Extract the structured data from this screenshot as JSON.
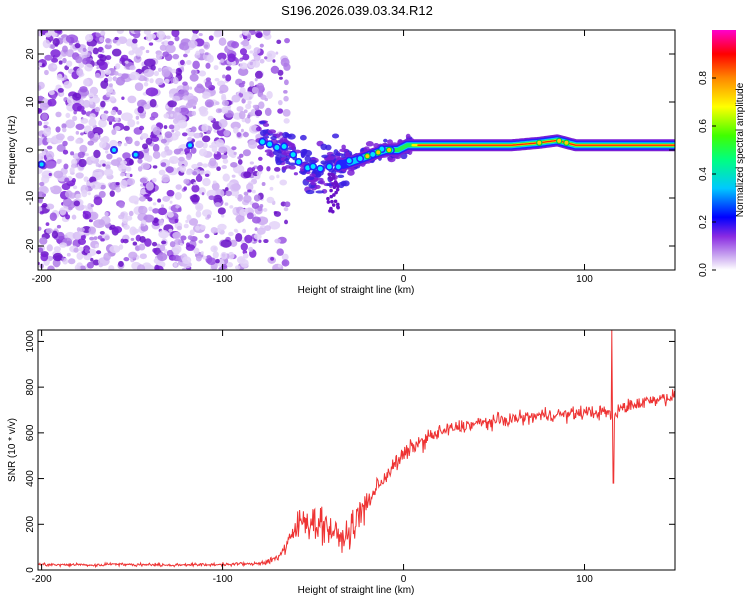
{
  "figure_title": "S196.2026.039.03.34.R12",
  "colors": {
    "snr_line": "#ee3333",
    "dots": "#7a1fd6",
    "track_core": "#ff0000"
  },
  "chart_data": [
    {
      "type": "heatmap",
      "title": "S196.2026.039.03.34.R12",
      "xlabel": "Height of straight line (km)",
      "ylabel": "Frequency (Hz)",
      "xlim": [
        -202,
        150
      ],
      "ylim": [
        -25,
        25
      ],
      "x_ticks": [
        -200,
        -100,
        0,
        100
      ],
      "x_tick_labels": [
        "-200",
        "-100",
        "0",
        "100"
      ],
      "y_ticks": [
        -20,
        -10,
        0,
        10,
        20
      ],
      "y_tick_labels": [
        "-20",
        "-10",
        "0",
        "10",
        "20"
      ],
      "noise_region_km": [
        -202,
        -78
      ],
      "signal_track_hz": [
        {
          "x": -78,
          "y": 2
        },
        {
          "x": -70,
          "y": 1
        },
        {
          "x": -62,
          "y": -1
        },
        {
          "x": -55,
          "y": -3
        },
        {
          "x": -48,
          "y": -4
        },
        {
          "x": -40,
          "y": -3
        },
        {
          "x": -33,
          "y": -3
        },
        {
          "x": -25,
          "y": -2
        },
        {
          "x": -18,
          "y": -1
        },
        {
          "x": -10,
          "y": 0
        },
        {
          "x": -3,
          "y": 0
        },
        {
          "x": 2,
          "y": 1
        },
        {
          "x": 20,
          "y": 1
        },
        {
          "x": 40,
          "y": 1
        },
        {
          "x": 60,
          "y": 1
        },
        {
          "x": 75,
          "y": 1.5
        },
        {
          "x": 85,
          "y": 2
        },
        {
          "x": 95,
          "y": 1
        },
        {
          "x": 110,
          "y": 1
        },
        {
          "x": 125,
          "y": 1
        },
        {
          "x": 150,
          "y": 1
        }
      ],
      "colorbar": {
        "label": "Normalized spectral amplitude",
        "range": [
          0,
          1
        ],
        "ticks": [
          0,
          0.2,
          0.4,
          0.6,
          0.8
        ],
        "tick_labels": [
          "0.0",
          "0.2",
          "0.4",
          "0.6",
          "0.8"
        ],
        "colors": [
          "#ffffff",
          "#8a2be2",
          "#0000ff",
          "#00ffff",
          "#00ff00",
          "#ffff00",
          "#ff8800",
          "#ff0000",
          "#ff00cc"
        ]
      }
    },
    {
      "type": "line",
      "xlabel": "Height of straight line (km)",
      "ylabel": "SNR (10 * v/v)",
      "xlim": [
        -202,
        150
      ],
      "ylim": [
        0,
        1050
      ],
      "x_ticks": [
        -200,
        -100,
        0,
        100
      ],
      "x_tick_labels": [
        "-200",
        "-100",
        "0",
        "100"
      ],
      "y_ticks": [
        0,
        200,
        400,
        600,
        800,
        1000
      ],
      "y_tick_labels": [
        "0",
        "200",
        "400",
        "600",
        "800",
        "1000"
      ],
      "series": [
        {
          "name": "SNR",
          "x": [
            -202,
            -190,
            -180,
            -170,
            -160,
            -150,
            -140,
            -130,
            -120,
            -110,
            -100,
            -95,
            -90,
            -85,
            -80,
            -75,
            -70,
            -65,
            -60,
            -55,
            -50,
            -45,
            -40,
            -35,
            -30,
            -25,
            -20,
            -15,
            -10,
            -5,
            0,
            5,
            10,
            15,
            20,
            25,
            30,
            40,
            50,
            60,
            70,
            80,
            90,
            100,
            108,
            113,
            116,
            120,
            130,
            140,
            150
          ],
          "y": [
            25,
            22,
            24,
            20,
            28,
            22,
            25,
            20,
            24,
            22,
            25,
            24,
            28,
            25,
            30,
            38,
            55,
            95,
            175,
            225,
            210,
            205,
            175,
            135,
            160,
            230,
            290,
            360,
            410,
            460,
            500,
            540,
            560,
            585,
            600,
            615,
            625,
            640,
            650,
            660,
            670,
            680,
            680,
            690,
            690,
            690,
            660,
            710,
            730,
            750,
            760
          ]
        }
      ],
      "spikes": [
        {
          "x": 115,
          "y": 1050
        },
        {
          "x": 116,
          "y": 380
        }
      ]
    }
  ]
}
